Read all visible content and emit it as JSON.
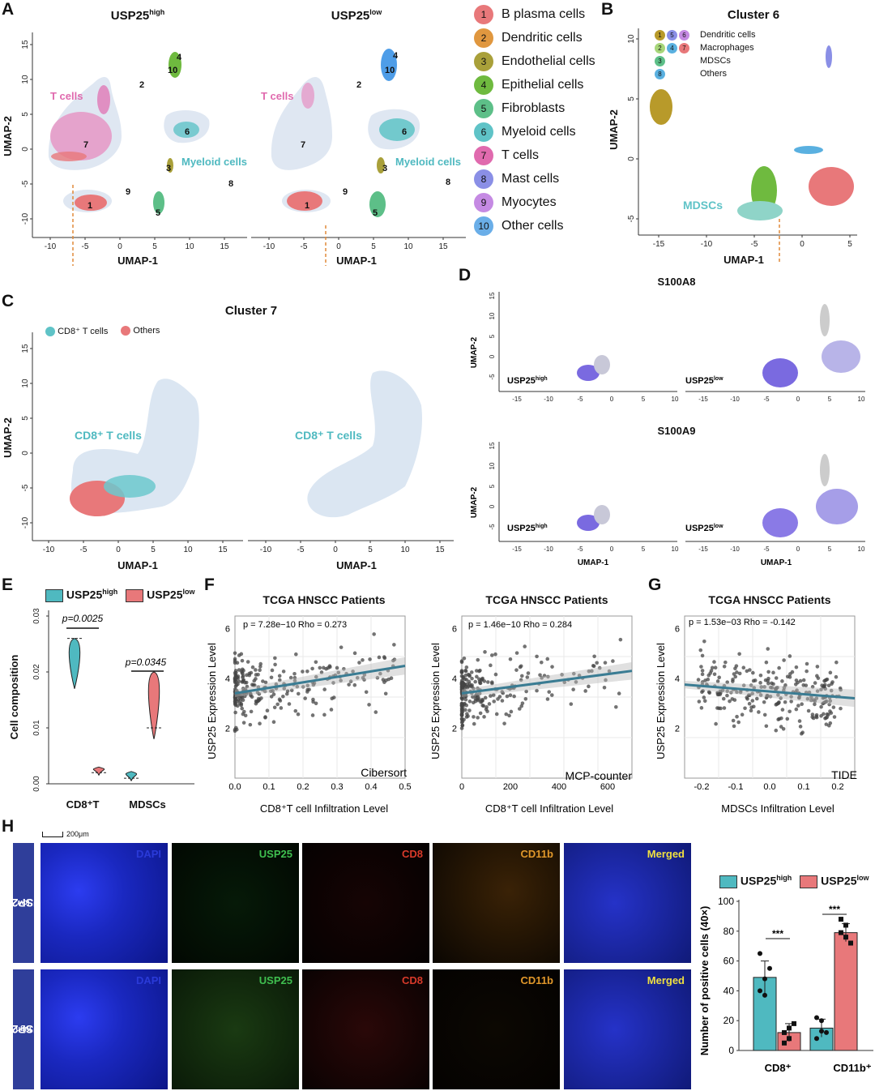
{
  "panels": {
    "A": "A",
    "B": "B",
    "C": "C",
    "D": "D",
    "E": "E",
    "F": "F",
    "G": "G",
    "H": "H"
  },
  "panel_a": {
    "left_title": "USP25",
    "left_title_sup": "high",
    "right_title": "USP25",
    "right_title_sup": "low",
    "xlabel": "UMAP-1",
    "ylabel": "UMAP-2",
    "xticks": [
      "-10",
      "-5",
      "0",
      "5",
      "10",
      "15"
    ],
    "yticks": [
      "15",
      "10",
      "5",
      "0",
      "-5",
      "-10"
    ],
    "annotations": {
      "t_cells": "T cells",
      "myeloid_cells": "Myeloid cells"
    },
    "cluster_numbers": [
      "1",
      "2",
      "3",
      "4",
      "5",
      "6",
      "7",
      "8",
      "9",
      "10"
    ]
  },
  "legend": {
    "items": [
      {
        "num": "1",
        "label": "B plasma cells",
        "color": "#e8787a"
      },
      {
        "num": "2",
        "label": "Dendritic cells",
        "color": "#e0973f"
      },
      {
        "num": "3",
        "label": "Endothelial cells",
        "color": "#a9a03a"
      },
      {
        "num": "4",
        "label": "Epithelial cells",
        "color": "#6fba3f"
      },
      {
        "num": "5",
        "label": "Fibroblasts",
        "color": "#5dbf88"
      },
      {
        "num": "6",
        "label": "Myeloid cells",
        "color": "#5fc3c7"
      },
      {
        "num": "7",
        "label": "T cells",
        "color": "#e06aae"
      },
      {
        "num": "8",
        "label": "Mast cells",
        "color": "#8a8fe6"
      },
      {
        "num": "9",
        "label": "Myocytes",
        "color": "#c58ae3"
      },
      {
        "num": "10",
        "label": "Other cells",
        "color": "#6aaee8"
      }
    ]
  },
  "panel_b": {
    "title": "Cluster 6",
    "xlabel": "UMAP-1",
    "ylabel": "UMAP-2",
    "xticks": [
      "-15",
      "-10",
      "-5",
      "0",
      "5"
    ],
    "yticks": [
      "10",
      "5",
      "0",
      "-5"
    ],
    "legend": [
      {
        "nums": [
          "1",
          "5",
          "6"
        ],
        "label": "Dendritic cells"
      },
      {
        "nums": [
          "2",
          "4",
          "7"
        ],
        "label": "Macrophages"
      },
      {
        "nums": [
          "3"
        ],
        "label": "MDSCs"
      },
      {
        "nums": [
          "8"
        ],
        "label": "Others"
      }
    ],
    "annotation": "MDSCs"
  },
  "panel_c": {
    "title": "Cluster 7",
    "legend": [
      {
        "label": "CD8⁺ T cells",
        "color": "#5fc3c7"
      },
      {
        "label": "Others",
        "color": "#e8787a"
      }
    ],
    "annotation": "CD8⁺ T cells",
    "xlabel": "UMAP-1",
    "ylabel": "UMAP-2",
    "xticks": [
      "-10",
      "-5",
      "0",
      "5",
      "10",
      "15"
    ],
    "yticks": [
      "15",
      "10",
      "5",
      "0",
      "-5",
      "-10"
    ]
  },
  "panel_d": {
    "row1_title": "S100A8",
    "row2_title": "S100A9",
    "left_label": "USP25",
    "left_sup": "high",
    "right_label": "USP25",
    "right_sup": "low",
    "ylabel": "UMAP-2",
    "xlabel": "UMAP-1",
    "xticks": [
      "-15",
      "-10",
      "-5",
      "0",
      "5",
      "10"
    ],
    "yticks": [
      "15",
      "10",
      "5",
      "0",
      "-5"
    ]
  },
  "panel_e": {
    "legend": [
      {
        "label": "USP25",
        "sup": "high",
        "color": "#4fb9c0"
      },
      {
        "label": "USP25",
        "sup": "low",
        "color": "#e8787a"
      }
    ],
    "ylabel": "Cell composition",
    "yticks": [
      "0.03",
      "0.02",
      "0.01",
      "0.00"
    ],
    "categories": [
      "CD8⁺T",
      "MDSCs"
    ],
    "pvalues": [
      "p=0.0025",
      "p=0.0345"
    ]
  },
  "panel_f": {
    "title_left": "TCGA HNSCC Patients",
    "title_right": "TCGA HNSCC Patients",
    "stat_left": "p = 7.28e−10   Rho = 0.273",
    "stat_right": "p = 1.46e−10   Rho = 0.284",
    "method_left": "Cibersort",
    "method_right": "MCP-counter",
    "ylabel": "USP25 Expression Level",
    "xlabel": "CD8⁺T cell Infiltration Level",
    "xticks_left": [
      "0.0",
      "0.1",
      "0.2",
      "0.3",
      "0.4",
      "0.5"
    ],
    "xticks_right": [
      "0",
      "200",
      "400",
      "600"
    ],
    "yticks": [
      "6",
      "4",
      "2"
    ]
  },
  "panel_g": {
    "title": "TCGA HNSCC Patients",
    "stat": "p = 1.53e−03   Rho = -0.142",
    "method": "TIDE",
    "ylabel": "USP25 Expression Level",
    "xlabel": "MDSCs Infiltration Level",
    "xticks": [
      "-0.2",
      "-0.1",
      "0.0",
      "0.1",
      "0.2"
    ],
    "yticks": [
      "6",
      "4",
      "2"
    ]
  },
  "panel_h": {
    "scalebar": "200μm",
    "row_labels": [
      {
        "label": "USP25",
        "sup": "low"
      },
      {
        "label": "USP25",
        "sup": "high"
      }
    ],
    "channels": [
      {
        "label": "DAPI",
        "color": "#2a3ad8"
      },
      {
        "label": "USP25",
        "color": "#3fbf4f"
      },
      {
        "label": "CD8",
        "color": "#d83a2a"
      },
      {
        "label": "CD11b",
        "color": "#e0972a"
      },
      {
        "label": "Merged",
        "color": "#f0e040"
      }
    ],
    "bar_legend": [
      {
        "label": "USP25",
        "sup": "high",
        "color": "#4fb9c0"
      },
      {
        "label": "USP25",
        "sup": "low",
        "color": "#e8787a"
      }
    ],
    "bar_ylabel": "Number of positive cells (40×)",
    "bar_yticks": [
      "100",
      "80",
      "60",
      "40",
      "20",
      "0"
    ],
    "bar_categories": [
      "CD8⁺",
      "CD11b⁺"
    ],
    "significance": [
      "***",
      "***"
    ]
  },
  "chart_data": [
    {
      "type": "bar",
      "panel": "H",
      "categories": [
        "CD8⁺",
        "CD11b⁺"
      ],
      "series": [
        {
          "name": "USP25 high",
          "values": [
            49,
            15
          ],
          "points": [
            [
              65,
              48,
              55,
              40,
              37
            ],
            [
              8,
              20,
              12,
              22,
              13
            ]
          ]
        },
        {
          "name": "USP25 low",
          "values": [
            12,
            79
          ],
          "points": [
            [
              5,
              8,
              18,
              12,
              15
            ],
            [
              88,
              84,
              72,
              79,
              76
            ]
          ]
        }
      ],
      "ylim": [
        0,
        100
      ],
      "ylabel": "Number of positive cells (40×)"
    },
    {
      "type": "scatter",
      "panel": "F-left",
      "title": "TCGA HNSCC Patients",
      "xlim": [
        0,
        0.5
      ],
      "ylim": [
        0,
        6.5
      ],
      "fit": {
        "x": [
          0,
          0.5
        ],
        "y": [
          3.4,
          4.5
        ]
      },
      "xlabel": "CD8⁺T cell Infiltration Level",
      "ylabel": "USP25 Expression Level"
    },
    {
      "type": "scatter",
      "panel": "F-right",
      "title": "TCGA HNSCC Patients",
      "xlim": [
        0,
        700
      ],
      "ylim": [
        0,
        6.5
      ],
      "fit": {
        "x": [
          0,
          700
        ],
        "y": [
          3.4,
          4.3
        ]
      },
      "xlabel": "CD8⁺T cell Infiltration Level",
      "ylabel": "USP25 Expression Level"
    },
    {
      "type": "scatter",
      "panel": "G",
      "title": "TCGA HNSCC Patients",
      "xlim": [
        -0.25,
        0.25
      ],
      "ylim": [
        0,
        6.5
      ],
      "fit": {
        "x": [
          -0.25,
          0.25
        ],
        "y": [
          3.75,
          3.2
        ]
      },
      "xlabel": "MDSCs Infiltration Level",
      "ylabel": "USP25 Expression Level"
    },
    {
      "type": "violin",
      "panel": "E",
      "categories": [
        "CD8⁺T",
        "MDSCs"
      ],
      "series": [
        {
          "name": "USP25 high",
          "ranges": [
            [
              0.017,
              0.026
            ],
            [
              0.0005,
              0.0022
            ]
          ],
          "medians": [
            0.026,
            0.001
          ]
        },
        {
          "name": "USP25 low",
          "ranges": [
            [
              0.0015,
              0.003
            ],
            [
              0.008,
              0.02
            ]
          ],
          "medians": [
            0.002,
            0.01
          ]
        }
      ],
      "ylim": [
        0,
        0.03
      ]
    }
  ]
}
